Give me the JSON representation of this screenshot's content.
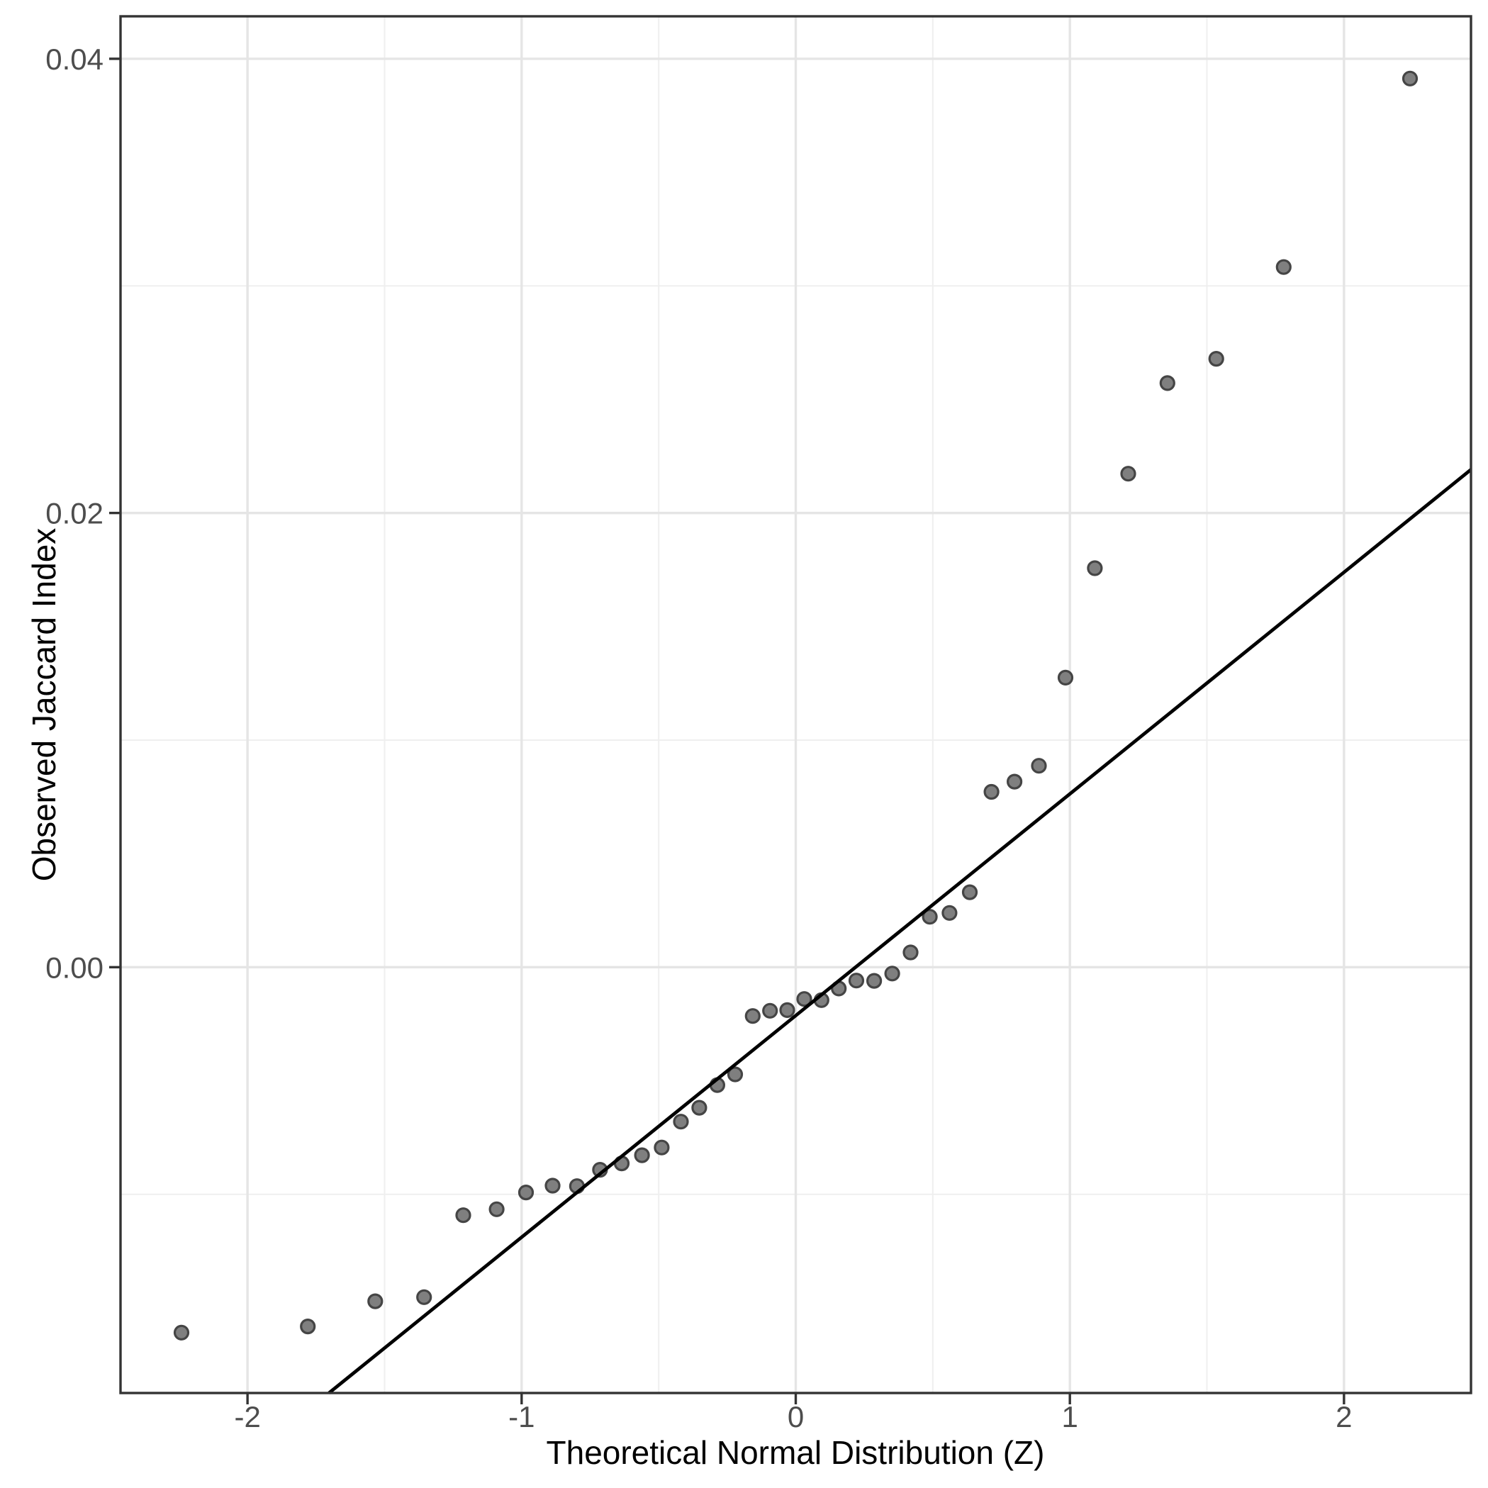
{
  "chart_data": {
    "type": "scatter",
    "title": "",
    "xlabel": "Theoretical Normal Distribution (Z)",
    "ylabel": "Observed Jaccard Index",
    "xlim": [
      -2.4633,
      2.4633
    ],
    "ylim": [
      -0.01875,
      0.04187
    ],
    "x_major_ticks": {
      "values": [
        -2,
        -1,
        0,
        1,
        2
      ],
      "labels": [
        "-2",
        "-1",
        "0",
        "1",
        "2"
      ]
    },
    "y_major_ticks": {
      "values": [
        0,
        0.02,
        0.04
      ],
      "labels": [
        "0.00",
        "0.02",
        "0.04"
      ]
    },
    "x_minor_ticks": [
      -1.5,
      -0.5,
      0.5,
      1.5
    ],
    "y_minor_ticks": [
      -0.01,
      0.01,
      0.03
    ],
    "grid": "major+minor",
    "legend": "none",
    "reference_line": {
      "slope": 0.00976,
      "intercept": -0.00213
    },
    "series": [
      {
        "name": "sample-quantiles",
        "points": [
          [
            -2.241,
            -0.01609
          ],
          [
            -1.78,
            -0.01582
          ],
          [
            -1.534,
            -0.01471
          ],
          [
            -1.356,
            -0.01453
          ],
          [
            -1.213,
            -0.01092
          ],
          [
            -1.091,
            -0.01066
          ],
          [
            -0.984,
            -0.00992
          ],
          [
            -0.887,
            -0.00962
          ],
          [
            -0.798,
            -0.00964
          ],
          [
            -0.714,
            -0.00892
          ],
          [
            -0.635,
            -0.00864
          ],
          [
            -0.561,
            -0.00828
          ],
          [
            -0.489,
            -0.00794
          ],
          [
            -0.419,
            -0.0068
          ],
          [
            -0.352,
            -0.00619
          ],
          [
            -0.286,
            -0.00519
          ],
          [
            -0.221,
            -0.00472
          ],
          [
            -0.157,
            -0.00215
          ],
          [
            -0.094,
            -0.00192
          ],
          [
            -0.031,
            -0.00189
          ],
          [
            0.031,
            -0.0014
          ],
          [
            0.094,
            -0.00145
          ],
          [
            0.157,
            -0.00094
          ],
          [
            0.221,
            -0.00059
          ],
          [
            0.286,
            -0.0006
          ],
          [
            0.352,
            -0.00028
          ],
          [
            0.419,
            0.00065
          ],
          [
            0.489,
            0.00222
          ],
          [
            0.561,
            0.00239
          ],
          [
            0.635,
            0.0033
          ],
          [
            0.714,
            0.00772
          ],
          [
            0.798,
            0.00817
          ],
          [
            0.887,
            0.00887
          ],
          [
            0.984,
            0.01275
          ],
          [
            1.091,
            0.01757
          ],
          [
            1.213,
            0.02173
          ],
          [
            1.356,
            0.02572
          ],
          [
            1.534,
            0.02679
          ],
          [
            1.78,
            0.03083
          ],
          [
            2.241,
            0.03913
          ]
        ]
      }
    ],
    "style": {
      "point_fill": "#7f7f7f",
      "point_stroke": "#454545",
      "reference_line_color": "#000000",
      "grid_major_color": "#e5e5e5",
      "grid_minor_color": "#efefef",
      "panel_border_color": "#333333",
      "tick_mark_color": "#333333",
      "tick_label_color": "#4d4d4d",
      "axis_title_color": "#000000",
      "panel_background": "#ffffff"
    }
  }
}
